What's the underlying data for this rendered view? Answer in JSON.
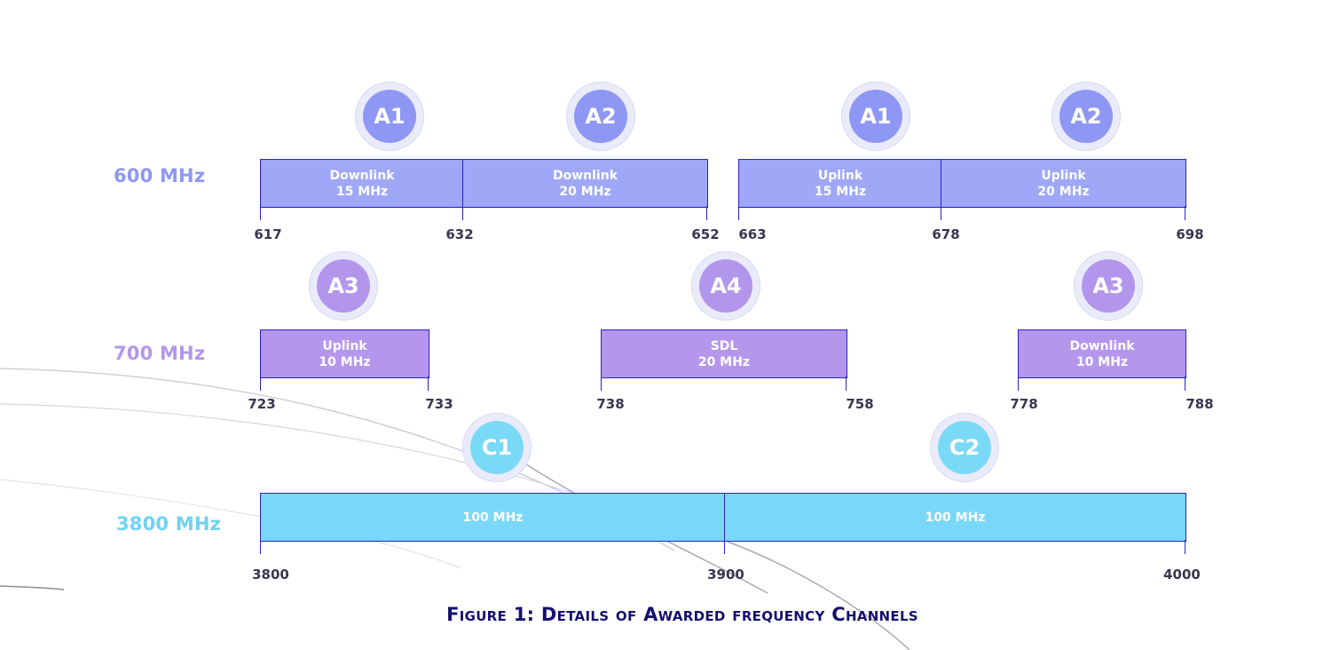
{
  "caption": "Figure 1: Details of Awarded frequency Channels",
  "colors": {
    "band_600": "#9ea8f7",
    "band_700": "#b497ec",
    "band_3800": "#79d8f7",
    "outline": "#2a22c8",
    "caption": "#14106e"
  },
  "bands": [
    {
      "label": "600 MHz",
      "color": "#8e97f4",
      "ticks": [
        "617",
        "632",
        "652",
        "663",
        "678",
        "698"
      ],
      "segments": [
        {
          "badge": "A1",
          "line1": "Downlink",
          "line2": "15 MHz"
        },
        {
          "badge": "A2",
          "line1": "Downlink",
          "line2": "20 MHz"
        },
        {
          "badge": "A1",
          "line1": "Uplink",
          "line2": "15 MHz"
        },
        {
          "badge": "A2",
          "line1": "Uplink",
          "line2": "20 MHz"
        }
      ]
    },
    {
      "label": "700 MHz",
      "color": "#b296ec",
      "ticks": [
        "723",
        "733",
        "738",
        "758",
        "778",
        "788"
      ],
      "segments": [
        {
          "badge": "A3",
          "line1": "Uplink",
          "line2": "10 MHz"
        },
        {
          "badge": "A4",
          "line1": "SDL",
          "line2": "20 MHz"
        },
        {
          "badge": "A3",
          "line1": "Downlink",
          "line2": "10 MHz"
        }
      ]
    },
    {
      "label": "3800 MHz",
      "color": "#6fd3f4",
      "ticks": [
        "3800",
        "3900",
        "4000"
      ],
      "segments": [
        {
          "badge": "C1",
          "line1": "100 MHz"
        },
        {
          "badge": "C2",
          "line1": "100 MHz"
        }
      ]
    }
  ]
}
